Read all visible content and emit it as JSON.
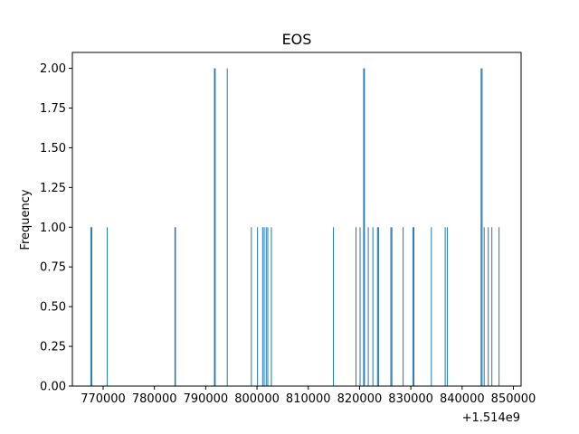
{
  "chart_data": {
    "type": "bar",
    "title": "EOS",
    "xlabel": "",
    "ylabel": "Frequency",
    "x_offset_label": "+1.514e9",
    "xlim": [
      764000,
      851500
    ],
    "ylim": [
      0,
      2.1
    ],
    "x_ticks": [
      770000,
      780000,
      790000,
      800000,
      810000,
      820000,
      830000,
      840000,
      850000
    ],
    "x_tick_labels": [
      "770000",
      "780000",
      "790000",
      "800000",
      "810000",
      "820000",
      "830000",
      "840000",
      "850000"
    ],
    "y_ticks": [
      0,
      0.25,
      0.5,
      0.75,
      1.0,
      1.25,
      1.5,
      1.75,
      2.0
    ],
    "y_tick_labels": [
      "0.00",
      "0.25",
      "0.50",
      "0.75",
      "1.00",
      "1.25",
      "1.50",
      "1.75",
      "2.00"
    ],
    "bar_width": 175,
    "bar_color": "#1f77b4",
    "grid": false,
    "bars": [
      {
        "x": 767600,
        "value": 1
      },
      {
        "x": 767800,
        "value": 1
      },
      {
        "x": 770800,
        "value": 1
      },
      {
        "x": 784000,
        "value": 1
      },
      {
        "x": 784100,
        "value": 1
      },
      {
        "x": 791700,
        "value": 2
      },
      {
        "x": 791850,
        "value": 2
      },
      {
        "x": 794200,
        "value": 2
      },
      {
        "x": 798900,
        "value": 1
      },
      {
        "x": 800100,
        "value": 1
      },
      {
        "x": 801100,
        "value": 1
      },
      {
        "x": 801400,
        "value": 1
      },
      {
        "x": 801800,
        "value": 1
      },
      {
        "x": 802100,
        "value": 1
      },
      {
        "x": 802800,
        "value": 1
      },
      {
        "x": 814900,
        "value": 1
      },
      {
        "x": 819300,
        "value": 1
      },
      {
        "x": 820100,
        "value": 1
      },
      {
        "x": 820800,
        "value": 2
      },
      {
        "x": 820950,
        "value": 2
      },
      {
        "x": 821700,
        "value": 1
      },
      {
        "x": 822600,
        "value": 1
      },
      {
        "x": 823500,
        "value": 1
      },
      {
        "x": 823700,
        "value": 1
      },
      {
        "x": 826100,
        "value": 1
      },
      {
        "x": 826300,
        "value": 1
      },
      {
        "x": 828500,
        "value": 1
      },
      {
        "x": 830400,
        "value": 1
      },
      {
        "x": 830600,
        "value": 1
      },
      {
        "x": 834000,
        "value": 1
      },
      {
        "x": 836700,
        "value": 1
      },
      {
        "x": 837100,
        "value": 1
      },
      {
        "x": 843700,
        "value": 2
      },
      {
        "x": 843900,
        "value": 2
      },
      {
        "x": 844300,
        "value": 1
      },
      {
        "x": 845100,
        "value": 1
      },
      {
        "x": 845800,
        "value": 1
      },
      {
        "x": 847200,
        "value": 1
      }
    ]
  }
}
